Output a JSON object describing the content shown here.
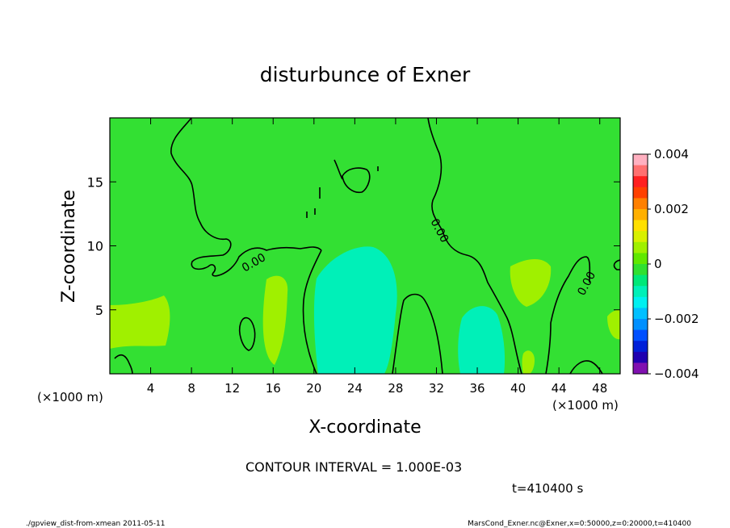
{
  "chart_data": {
    "type": "heatmap",
    "title": "disturbunce of Exner",
    "xlabel": "X-coordinate",
    "ylabel": "Z-coordinate",
    "x_unit_left": "(×1000 m)",
    "x_unit_right": "(×1000 m)",
    "xlim": [
      0,
      50
    ],
    "ylim": [
      0,
      20
    ],
    "x_ticks": [
      "4",
      "8",
      "12",
      "16",
      "20",
      "24",
      "28",
      "32",
      "36",
      "40",
      "44",
      "48"
    ],
    "x_tick_values": [
      4,
      8,
      12,
      16,
      20,
      24,
      28,
      32,
      36,
      40,
      44,
      48
    ],
    "y_ticks": [
      "5",
      "10",
      "15"
    ],
    "y_tick_values": [
      5,
      10,
      15
    ],
    "colorbar": {
      "range": [
        -0.004,
        0.004
      ],
      "labels": [
        "0.004",
        "0.002",
        "0",
        "−0.002",
        "−0.004"
      ],
      "label_values": [
        0.004,
        0.002,
        0,
        -0.002,
        -0.004
      ],
      "colors_top_to_bottom": [
        "#ffb0c0",
        "#ff7070",
        "#ff2020",
        "#ff4000",
        "#ff8000",
        "#ffb000",
        "#ffe000",
        "#d8f000",
        "#a0f000",
        "#60e800",
        "#30e030",
        "#00e878",
        "#00f0b8",
        "#00f0f0",
        "#00c0ff",
        "#0090ff",
        "#0050ff",
        "#0020d8",
        "#2000b0",
        "#8010b0"
      ]
    },
    "contour_labels": [
      "0.00",
      "0.00",
      "0.00"
    ],
    "contour_interval_text": "CONTOUR INTERVAL = 1.000E-03",
    "time_text": "t=410400 s",
    "background_level": 0,
    "regions": [
      {
        "name": "positive-lobe-left",
        "value": 0.0005
      },
      {
        "name": "negative-core",
        "value": -0.0015
      },
      {
        "name": "negative-tongue",
        "value": -0.0008
      },
      {
        "name": "negative-lower-right",
        "value": -0.0008
      },
      {
        "name": "positive-lobe-right",
        "value": 0.0005
      }
    ]
  },
  "footer": {
    "left": "./gpview_dist-from-xmean  2011-05-11",
    "right": "MarsCond_Exner.nc@Exner,x=0:50000,z=0:20000,t=410400"
  }
}
